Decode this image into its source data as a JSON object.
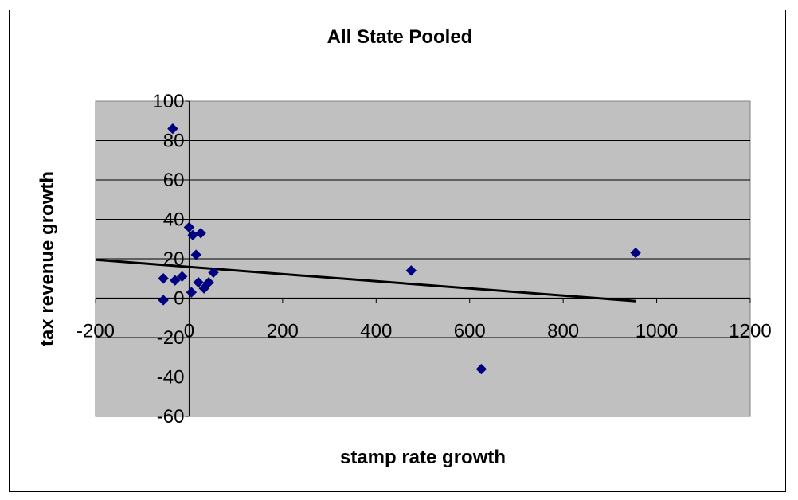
{
  "chart_data": {
    "type": "scatter",
    "title": "All State Pooled",
    "xlabel": "stamp rate growth",
    "ylabel": "tax revenue growth",
    "xlim": [
      -200,
      1200
    ],
    "ylim": [
      -60,
      100
    ],
    "x_ticks": [
      -200,
      0,
      200,
      400,
      600,
      800,
      1000,
      1200
    ],
    "y_ticks": [
      100,
      80,
      60,
      40,
      20,
      0,
      -20,
      -40,
      -60
    ],
    "x_tick_labels": [
      "-200",
      "0",
      "200",
      "400",
      "600",
      "800",
      "1000",
      "1200"
    ],
    "y_tick_labels": [
      "100",
      "80",
      "60",
      "40",
      "20",
      "0",
      "-20",
      "-40",
      "-60"
    ],
    "grid": "horizontal",
    "legend": "none",
    "colors": {
      "plot_area": "#c0c0c0",
      "marker": "#000080",
      "trendline": "#000000",
      "gridline": "#000000"
    },
    "series": [
      {
        "marker": "diamond",
        "x": [
          -35,
          -55,
          -30,
          -15,
          0,
          5,
          8,
          15,
          20,
          25,
          32,
          42,
          52,
          -55,
          475,
          625,
          955
        ],
        "y": [
          86,
          10,
          9,
          11,
          36,
          3,
          32,
          22,
          8,
          33,
          5,
          8,
          13,
          -1,
          14,
          -36,
          23
        ]
      }
    ],
    "trendline": {
      "x": [
        -200,
        955
      ],
      "y": [
        19.5,
        -1.5
      ]
    }
  }
}
